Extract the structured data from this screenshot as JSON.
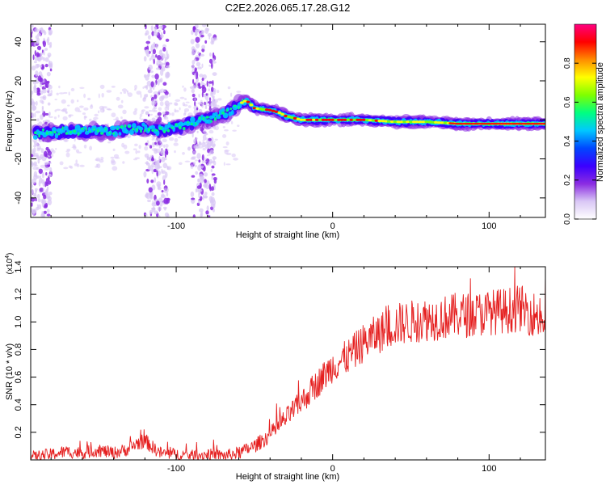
{
  "figure_title": "C2E2.2026.065.17.28.G12",
  "colors": {
    "snr_line": "#e51f1f",
    "frame": "#000000",
    "background": "#ffffff"
  },
  "chart_data": [
    {
      "type": "heatmap",
      "title": "C2E2.2026.065.17.28.G12",
      "xlabel": "Height of straight line (km)",
      "ylabel": "Frequency (Hz)",
      "xlim": [
        -193,
        136
      ],
      "ylim": [
        -50,
        49
      ],
      "xticks": [
        -100,
        0,
        100
      ],
      "xtick_labels": [
        "-100",
        "0",
        "100"
      ],
      "yticks": [
        -40,
        -20,
        0,
        20,
        40
      ],
      "ytick_labels": [
        "-40",
        "-20",
        "0",
        "20",
        "40"
      ],
      "colorbar": {
        "label": "Normalized spectral amplitude",
        "range": [
          0,
          1
        ],
        "ticks": [
          0.0,
          0.2,
          0.4,
          0.6,
          0.8
        ],
        "tick_labels": [
          "0.0",
          "0.2",
          "0.4",
          "0.6",
          "0.8"
        ],
        "colormap": [
          "#ffffff",
          "#d9c7f5",
          "#8a2be2",
          "#3a00ff",
          "#0047ff",
          "#00c8ff",
          "#00ff80",
          "#7fff00",
          "#ffff00",
          "#ff8c00",
          "#ff0000",
          "#ff0080"
        ]
      },
      "ridge_frequency_track": {
        "x": [
          -190,
          -170,
          -150,
          -130,
          -120,
          -110,
          -100,
          -90,
          -80,
          -70,
          -65,
          -60,
          -55,
          -50,
          -40,
          -35,
          -30,
          -25,
          -20,
          -15,
          -10,
          0,
          20,
          40,
          60,
          80,
          100,
          120,
          135
        ],
        "y": [
          -7,
          -6,
          -6,
          -5,
          -4,
          -5,
          -4,
          -2,
          0,
          3,
          5,
          8,
          10,
          6,
          5,
          4,
          2,
          1,
          0,
          0,
          0,
          0,
          0,
          -1,
          -1,
          -2,
          -2,
          -2,
          -2
        ]
      },
      "noise_bands_x": [
        [
          -193,
          -180
        ],
        [
          -120,
          -105
        ],
        [
          -90,
          -75
        ]
      ]
    },
    {
      "type": "line",
      "xlabel": "Height of straight line (km)",
      "ylabel": "SNR (10 * v/v)",
      "scale_label": "(x10",
      "scale_exponent": "4",
      "scale_suffix": ")",
      "xlim": [
        -193,
        136
      ],
      "ylim": [
        0,
        1.4
      ],
      "xticks": [
        -100,
        0,
        100
      ],
      "xtick_labels": [
        "-100",
        "0",
        "100"
      ],
      "yticks": [
        0.2,
        0.4,
        0.6,
        0.8,
        1.0,
        1.2,
        1.4
      ],
      "ytick_labels": [
        "0.2",
        "0.4",
        "0.6",
        "0.8",
        "1.0",
        "1.2",
        "1.4"
      ],
      "series": [
        {
          "name": "SNR",
          "x": [
            -193,
            -180,
            -170,
            -160,
            -150,
            -140,
            -130,
            -125,
            -120,
            -115,
            -110,
            -100,
            -90,
            -80,
            -70,
            -60,
            -50,
            -40,
            -30,
            -20,
            -10,
            0,
            10,
            20,
            30,
            40,
            50,
            60,
            70,
            80,
            90,
            100,
            110,
            120,
            130,
            136
          ],
          "y": [
            0.02,
            0.04,
            0.06,
            0.05,
            0.07,
            0.05,
            0.08,
            0.12,
            0.14,
            0.09,
            0.05,
            0.04,
            0.03,
            0.04,
            0.03,
            0.05,
            0.1,
            0.18,
            0.3,
            0.42,
            0.55,
            0.68,
            0.75,
            0.85,
            0.92,
            0.98,
            1.0,
            1.02,
            1.03,
            1.05,
            1.05,
            1.07,
            1.08,
            1.1,
            1.05,
            1.0
          ]
        }
      ]
    }
  ]
}
